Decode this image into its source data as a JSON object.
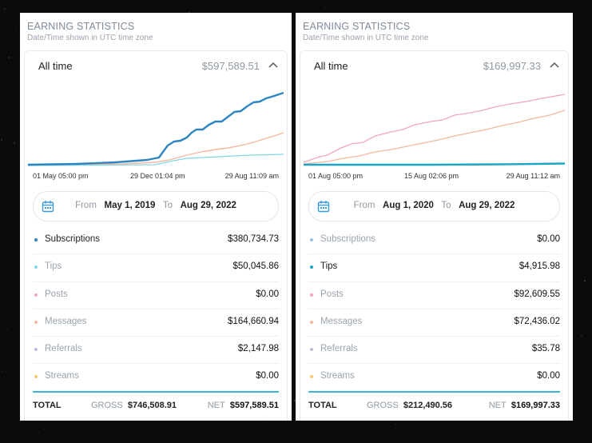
{
  "panels": [
    {
      "title": "EARNING STATISTICS",
      "subtitle": "Date/Time shown in UTC time zone",
      "range_label": "All time",
      "range_total": "$597,589.51",
      "x_labels": [
        "01 May 05:00 pm",
        "29 Dec 01:04 pm",
        "29 Aug 11:09 am"
      ],
      "date_from_label": "From",
      "date_from": "May 1, 2019",
      "date_to_label": "To",
      "date_to": "Aug 29, 2022",
      "rows": [
        {
          "label": "Subscriptions",
          "value": "$380,734.73",
          "color": "#2e86c1",
          "active": true
        },
        {
          "label": "Tips",
          "value": "$50,045.86",
          "color": "#7fd6e3",
          "active": false
        },
        {
          "label": "Posts",
          "value": "$0.00",
          "color": "#f1a7b6",
          "active": false
        },
        {
          "label": "Messages",
          "value": "$164,660.94",
          "color": "#f3b8a0",
          "active": false
        },
        {
          "label": "Referrals",
          "value": "$2,147.98",
          "color": "#c3b8d6",
          "active": false
        },
        {
          "label": "Streams",
          "value": "$0.00",
          "color": "#f2c66d",
          "active": false
        }
      ],
      "total_label": "TOTAL",
      "gross_label": "GROSS",
      "gross_value": "$746,508.91",
      "net_label": "NET",
      "net_value": "$597,589.51"
    },
    {
      "title": "EARNING STATISTICS",
      "subtitle": "Date/Time shown in UTC time zone",
      "range_label": "All time",
      "range_total": "$169,997.33",
      "x_labels": [
        "01 Aug 05:00 pm",
        "15 Aug 02:06 pm",
        "29 Aug 11:12 am"
      ],
      "date_from_label": "From",
      "date_from": "Aug 1, 2020",
      "date_to_label": "To",
      "date_to": "Aug 29, 2022",
      "rows": [
        {
          "label": "Subscriptions",
          "value": "$0.00",
          "color": "#9bc4e6",
          "active": false
        },
        {
          "label": "Tips",
          "value": "$4,915.98",
          "color": "#1aa6c6",
          "active": true
        },
        {
          "label": "Posts",
          "value": "$92,609.55",
          "color": "#f1a7b6",
          "active": false
        },
        {
          "label": "Messages",
          "value": "$72,436.02",
          "color": "#f3b8a0",
          "active": false
        },
        {
          "label": "Referrals",
          "value": "$35.78",
          "color": "#c3b8d6",
          "active": false
        },
        {
          "label": "Streams",
          "value": "$0.00",
          "color": "#f2c66d",
          "active": false
        }
      ],
      "total_label": "TOTAL",
      "gross_label": "GROSS",
      "gross_value": "$212,490.56",
      "net_label": "NET",
      "net_value": "$169,997.33"
    }
  ],
  "icons": [
    "calendar-icon",
    "chevron-up-icon"
  ]
}
